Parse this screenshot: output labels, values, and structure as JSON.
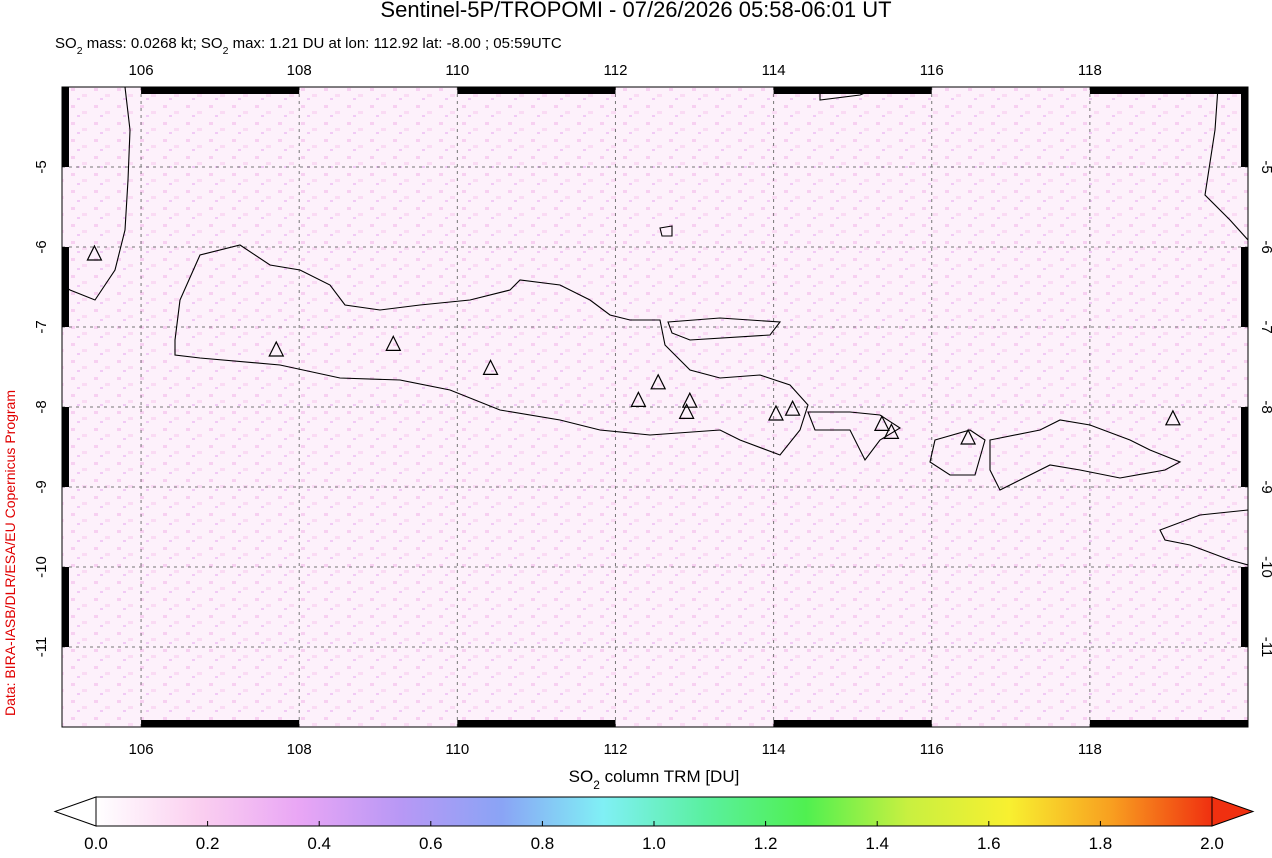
{
  "title": "Sentinel-5P/TROPOMI - 07/26/2026 05:58-06:01 UT",
  "subtitle_parts": [
    "SO",
    "2",
    " mass: 0.0268 kt; SO",
    "2",
    " max: 1.21 DU at lon: 112.92 lat: -8.00 ; 05:59UTC"
  ],
  "credit": "Data: BIRA-IASB/DLR/ESA/EU Copernicus Program",
  "map": {
    "xlim": [
      105,
      120
    ],
    "ylim": [
      -12,
      -4
    ],
    "xticks": [
      106,
      108,
      110,
      112,
      114,
      116,
      118
    ],
    "yticks": [
      -5,
      -6,
      -7,
      -8,
      -9,
      -10,
      -11
    ],
    "volcanoes": [
      {
        "lon": 105.41,
        "lat": -6.1
      },
      {
        "lon": 107.71,
        "lat": -7.3
      },
      {
        "lon": 109.19,
        "lat": -7.23
      },
      {
        "lon": 110.42,
        "lat": -7.53
      },
      {
        "lon": 112.29,
        "lat": -7.93
      },
      {
        "lon": 112.54,
        "lat": -7.71
      },
      {
        "lon": 112.94,
        "lat": -7.94
      },
      {
        "lon": 112.9,
        "lat": -8.08
      },
      {
        "lon": 114.03,
        "lat": -8.1
      },
      {
        "lon": 114.24,
        "lat": -8.04
      },
      {
        "lon": 115.37,
        "lat": -8.23
      },
      {
        "lon": 115.49,
        "lat": -8.33
      },
      {
        "lon": 116.46,
        "lat": -8.4
      },
      {
        "lon": 119.05,
        "lat": -8.16
      }
    ]
  },
  "colorbar": {
    "label_parts": [
      "SO",
      "2",
      " column TRM [DU]"
    ],
    "lim": [
      0,
      2
    ],
    "ticks": [
      {
        "value": 0,
        "label": "0.0"
      },
      {
        "value": 0.2,
        "label": "0.2"
      },
      {
        "value": 0.4,
        "label": "0.4"
      },
      {
        "value": 0.6,
        "label": "0.6"
      },
      {
        "value": 0.8,
        "label": "0.8"
      },
      {
        "value": 1,
        "label": "1.0"
      },
      {
        "value": 1.2,
        "label": "1.2"
      },
      {
        "value": 1.4,
        "label": "1.4"
      },
      {
        "value": 1.6,
        "label": "1.6"
      },
      {
        "value": 1.8,
        "label": "1.8"
      },
      {
        "value": 2,
        "label": "2.0"
      }
    ],
    "colors": [
      "#ffffff",
      "#fbd0f0",
      "#e9a6f5",
      "#b898f5",
      "#8aa4f5",
      "#80f0f5",
      "#5af0a0",
      "#50f050",
      "#c8f040",
      "#f8f030",
      "#f8a020",
      "#f03010"
    ]
  }
}
